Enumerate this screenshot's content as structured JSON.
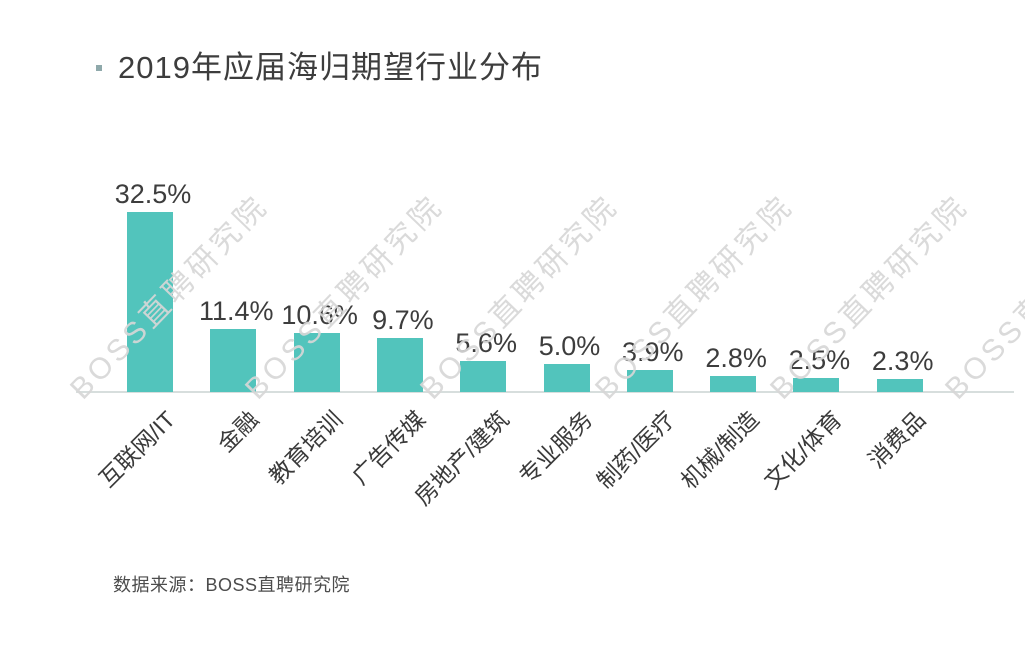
{
  "title": "2019年应届海归期望行业分布",
  "source_note": "数据来源：BOSS直聘研究院",
  "watermark": {
    "text": "BOSS直聘研究院",
    "color": "#d7d7d7",
    "count": 6
  },
  "colors": {
    "bar": "#52c4bc",
    "axis_line": "#d7dedd",
    "title_text": "#3d3d3d",
    "value_text": "#3d3d3d",
    "category_text": "#3a3a3a",
    "bullet": "#8fa9ab",
    "watermark_text": "#d7d7d7"
  },
  "chart_data": {
    "type": "bar",
    "title": "2019年应届海归期望行业分布",
    "categories": [
      "互联网/IT",
      "金融",
      "教育培训",
      "广告传媒",
      "房地产/建筑",
      "专业服务",
      "制药/医疗",
      "机械/制造",
      "文化/体育",
      "消费品"
    ],
    "values": [
      32.5,
      11.4,
      10.6,
      9.7,
      5.6,
      5.0,
      3.9,
      2.8,
      2.5,
      2.3
    ],
    "value_labels": [
      "32.5%",
      "11.4%",
      "10.6%",
      "9.7%",
      "5.6%",
      "5.0%",
      "3.9%",
      "2.8%",
      "2.5%",
      "2.3%"
    ],
    "xlabel": "",
    "ylabel": "",
    "unit": "%",
    "ylim": [
      0,
      35
    ],
    "grid": false,
    "legend": null,
    "value_labels_shown": true,
    "category_label_rotation_deg": -45,
    "bar_color": "#52c4bc",
    "source": "数据来源：BOSS直聘研究院"
  }
}
